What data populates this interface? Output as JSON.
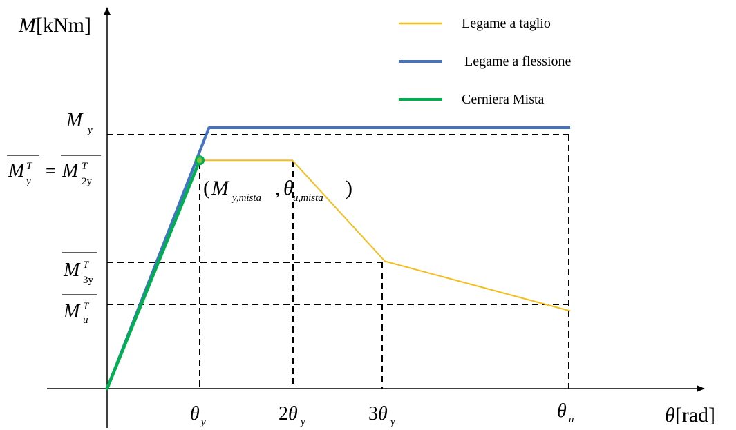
{
  "colors": {
    "shear": "#f5bd1c",
    "flexure": "#4472c4",
    "mixed": "#00b050",
    "mixed_point_fill": "#7dc242",
    "axis": "#000000",
    "guide": "#000000"
  },
  "axes": {
    "y_label_var": "M",
    "y_label_unit": "[kNm]",
    "x_label_var": "θ",
    "x_label_unit": "[rad]"
  },
  "legend": [
    {
      "label": "Legame a taglio",
      "color": "#f5bd1c"
    },
    {
      "label": "Legame a flessione",
      "color": "#4472c4"
    },
    {
      "label": "Cerniera Mista",
      "color": "#00b050"
    }
  ],
  "y_ticks": {
    "my": {
      "base": "M",
      "sub": "y"
    },
    "myT_eq_m2yT": {
      "left_base": "M",
      "left_sup": "T",
      "left_sub": "y",
      "eq": "=",
      "right_base": "M",
      "right_sup": "T",
      "right_sub": "2y"
    },
    "m3yT": {
      "base": "M",
      "sup": "T",
      "sub": "3y"
    },
    "muT": {
      "base": "M",
      "sup": "T",
      "sub": "u"
    }
  },
  "x_ticks": {
    "theta_y": {
      "coef": "",
      "base": "θ",
      "sub": "y"
    },
    "two_theta_y": {
      "coef": "2",
      "base": "θ",
      "sub": "y"
    },
    "three_theta_y": {
      "coef": "3",
      "base": "θ",
      "sub": "y"
    },
    "theta_u": {
      "coef": "",
      "base": "θ",
      "sub": "u"
    }
  },
  "annotation": {
    "open": "(",
    "m": "M",
    "m_sub": "y,mista",
    "comma": ",",
    "theta": "θ",
    "theta_sub": "u,mista",
    "close": ")"
  },
  "chart_data": {
    "type": "line",
    "x_units": "θ_y",
    "x_ticks": [
      "θ_y",
      "2θ_y",
      "3θ_y",
      "θ_u"
    ],
    "series": [
      {
        "name": "Legame a taglio",
        "points": [
          [
            0,
            0
          ],
          [
            1,
            0.735
          ],
          [
            2,
            0.735
          ],
          [
            3,
            0.41
          ],
          [
            5,
            0.25
          ]
        ]
      },
      {
        "name": "Legame a flessione",
        "points": [
          [
            0,
            0
          ],
          [
            1.1,
            0.84
          ],
          [
            5,
            0.84
          ]
        ]
      },
      {
        "name": "Cerniera Mista",
        "points": [
          [
            0,
            0
          ],
          [
            1,
            0.735
          ]
        ]
      }
    ]
  }
}
